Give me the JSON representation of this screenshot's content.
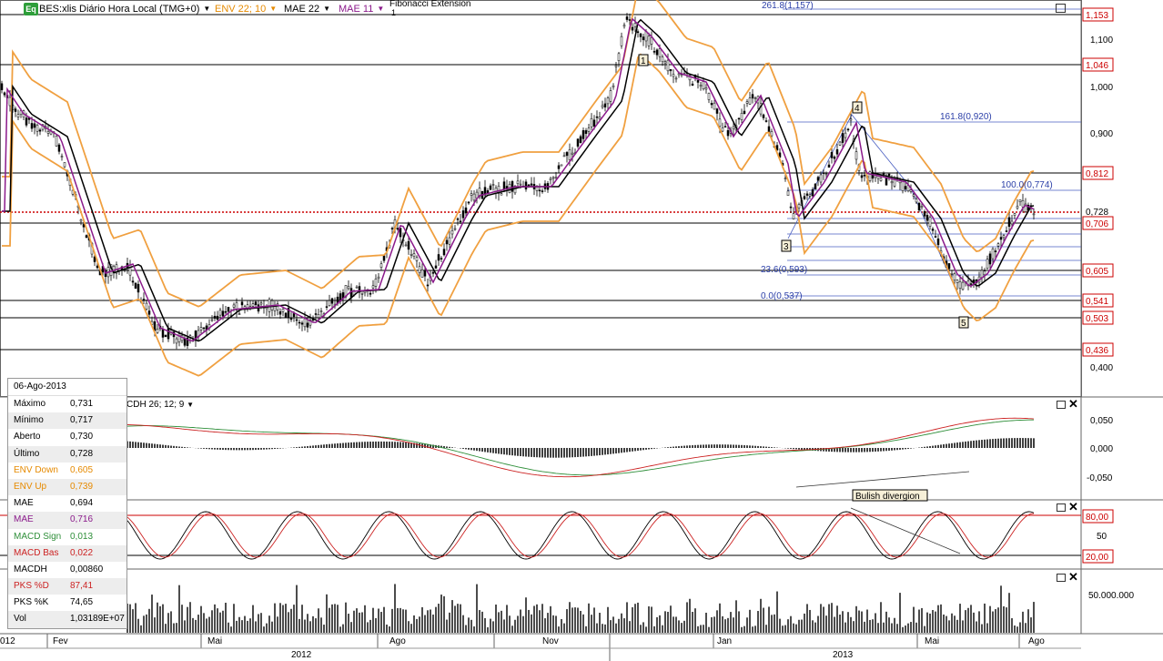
{
  "toolbar": {
    "eq_icon": "Eq",
    "symbol": "BES:xlis Diário Hora Local (TMG+0)",
    "env": "ENV 22; 10",
    "mae22": "MAE 22",
    "mae11": "MAE 11",
    "fibo": "Fibonacci Extension",
    "fibo_sub": "1"
  },
  "colors": {
    "env": "#f0a040",
    "mae11": "#8b1a8b",
    "mae22": "#000000",
    "price_axis_label": "#cc0000",
    "grid_line": "#000000",
    "fibo": "#4a5fc1",
    "macd_signal": "#cc2222",
    "macd_base": "#2f8f3a",
    "current_price": "#cc0000"
  },
  "price_axis": {
    "ticks": [
      "1,100",
      "1,000",
      "0,900",
      "0,400"
    ],
    "levels": [
      "1,153",
      "1,046",
      "0,812",
      "0,728",
      "0,706",
      "0,605",
      "0,541",
      "0,503",
      "0,436"
    ]
  },
  "fibo_labels": [
    "261.8(1,157)",
    "161.8(0,920)",
    "100.0(0,774)",
    "23.6(0,593)",
    "0.0(0,537)"
  ],
  "wave_labels": [
    "1",
    "3",
    "4",
    "5"
  ],
  "macd": {
    "label": "CDH 26; 12; 9",
    "ticks": [
      "0,050",
      "0,000",
      "-0,050"
    ],
    "annotation": "Bulish divergion"
  },
  "stoch": {
    "ticks": [
      "80,00",
      "50",
      "20,00"
    ]
  },
  "volume": {
    "ticks": [
      "50.000.000"
    ]
  },
  "x_axis": {
    "months": [
      "012",
      "Fev",
      "Mai",
      "Ago",
      "Nov",
      "Jan",
      "Mai",
      "Ago"
    ],
    "years": [
      "2012",
      "2013"
    ]
  },
  "info": {
    "date": "06-Ago-2013",
    "rows": [
      {
        "k": "Máximo",
        "v": "0,731",
        "c": "#000000"
      },
      {
        "k": "Mínimo",
        "v": "0,717",
        "c": "#000000"
      },
      {
        "k": "Aberto",
        "v": "0,730",
        "c": "#000000"
      },
      {
        "k": "Último",
        "v": "0,728",
        "c": "#000000"
      },
      {
        "k": "ENV Down",
        "v": "0,605",
        "c": "#e68a00"
      },
      {
        "k": "ENV Up",
        "v": "0,739",
        "c": "#e68a00"
      },
      {
        "k": "MAE",
        "v": "0,694",
        "c": "#000000"
      },
      {
        "k": "MAE",
        "v": "0,716",
        "c": "#8b1a8b"
      },
      {
        "k": "MACD Sign",
        "v": "0,013",
        "c": "#2f8f3a"
      },
      {
        "k": "MACD Bas",
        "v": "0,022",
        "c": "#cc2222"
      },
      {
        "k": "MACDH",
        "v": "0,00860",
        "c": "#000000"
      },
      {
        "k": "PKS %D",
        "v": "87,41",
        "c": "#cc2222"
      },
      {
        "k": "PKS %K",
        "v": "74,65",
        "c": "#000000"
      },
      {
        "k": "Vol",
        "v": "1,03189E+07",
        "c": "#000000"
      }
    ]
  }
}
